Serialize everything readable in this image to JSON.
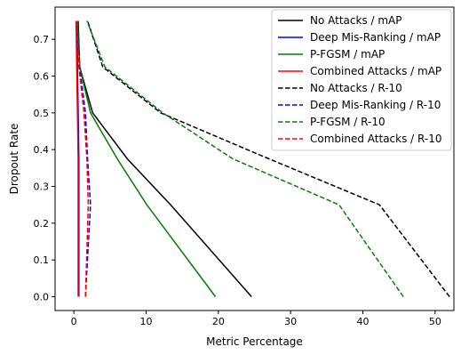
{
  "chart_data": {
    "type": "line",
    "title": "",
    "xlabel": "Metric Percentage",
    "ylabel": "Dropout Rate",
    "xlim": [
      -2.6,
      52.6
    ],
    "ylim": [
      -0.0375,
      0.7875
    ],
    "x_ticks": [
      0,
      10,
      20,
      30,
      40,
      50
    ],
    "y_ticks": [
      0.0,
      0.1,
      0.2,
      0.3,
      0.4,
      0.5,
      0.6,
      0.7
    ],
    "x_tick_labels": [
      "0",
      "10",
      "20",
      "30",
      "40",
      "50"
    ],
    "y_tick_labels": [
      "0.0",
      "0.1",
      "0.2",
      "0.3",
      "0.4",
      "0.5",
      "0.6",
      "0.7"
    ],
    "grid": false,
    "legend_position": "top-right",
    "y": [
      0.0,
      0.25,
      0.375,
      0.5,
      0.625,
      0.75
    ],
    "series": [
      {
        "name": "No Attacks / mAP",
        "color": "#000000",
        "style": "solid",
        "x": [
          24.6,
          13.4,
          7.4,
          2.6,
          0.8,
          0.6
        ]
      },
      {
        "name": "Deep Mis-Ranking / mAP",
        "color": "#0000ff",
        "style": "solid",
        "x": [
          0.7,
          0.7,
          0.7,
          0.6,
          0.5,
          0.5
        ]
      },
      {
        "name": "P-FGSM / mAP",
        "color": "#008000",
        "style": "solid",
        "x": [
          19.6,
          10.1,
          6.0,
          2.3,
          0.8,
          0.5
        ]
      },
      {
        "name": "Combined Attacks / mAP",
        "color": "#ff0000",
        "style": "solid",
        "x": [
          0.6,
          0.6,
          0.6,
          0.5,
          0.4,
          0.3
        ]
      },
      {
        "name": "No Attacks / R-10",
        "color": "#000000",
        "style": "dashed",
        "x": [
          52.0,
          42.3,
          27.0,
          12.0,
          4.0,
          1.9
        ]
      },
      {
        "name": "Deep Mis-Ranking / R-10",
        "color": "#0000ff",
        "style": "dashed",
        "x": [
          1.6,
          2.3,
          1.9,
          1.6,
          0.8,
          0.4
        ]
      },
      {
        "name": "P-FGSM / R-10",
        "color": "#008000",
        "style": "dashed",
        "x": [
          45.6,
          36.7,
          22.0,
          12.3,
          4.3,
          1.8
        ]
      },
      {
        "name": "Combined Attacks / R-10",
        "color": "#ff0000",
        "style": "dashed",
        "x": [
          1.6,
          2.0,
          1.8,
          1.4,
          0.7,
          0.4
        ]
      }
    ]
  }
}
